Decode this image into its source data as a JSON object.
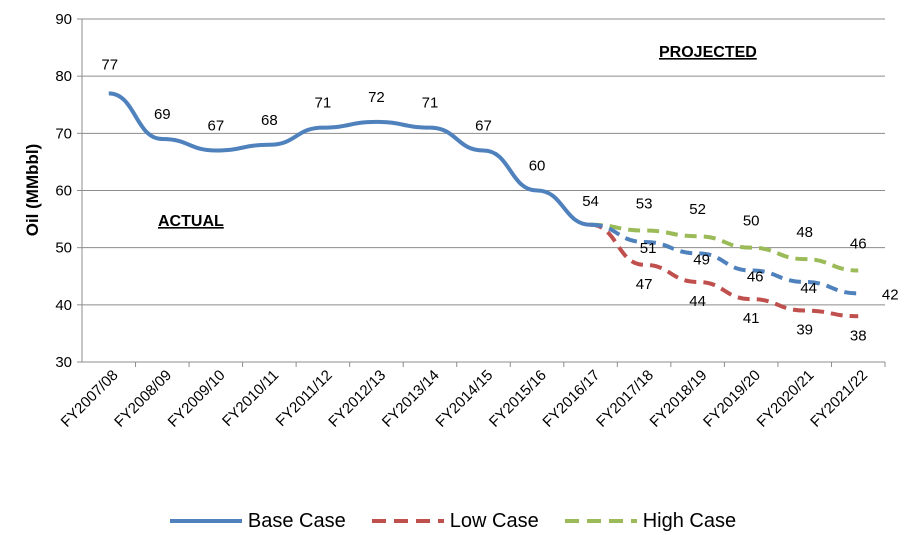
{
  "chart_data": {
    "type": "line",
    "ylabel": "Oil (MMbbl)",
    "ylim": [
      30,
      90
    ],
    "yticks": [
      30,
      40,
      50,
      60,
      70,
      80,
      90
    ],
    "grid": true,
    "legend_position": "bottom",
    "categories": [
      "FY2007/08",
      "FY2008/09",
      "FY2009/10",
      "FY2010/11",
      "FY2011/12",
      "FY2012/13",
      "FY2013/14",
      "FY2014/15",
      "FY2015/16",
      "FY2016/17",
      "FY2017/18",
      "FY2018/19",
      "FY2019/20",
      "FY2020/21",
      "FY2021/22"
    ],
    "series": [
      {
        "name": "Base Case",
        "color": "#4F81BD",
        "style": "solid-then-dashed",
        "values": [
          77,
          69,
          67,
          68,
          71,
          72,
          71,
          67,
          60,
          54,
          51,
          49,
          46,
          44,
          42
        ],
        "labels": [
          "77",
          "69",
          "67",
          "68",
          "71",
          "72",
          "71",
          "67",
          "60",
          "54",
          "51",
          "49",
          "46",
          "44",
          "42"
        ]
      },
      {
        "name": "Low Case",
        "color": "#C0504D",
        "style": "dashed",
        "values": [
          null,
          null,
          null,
          null,
          null,
          null,
          null,
          null,
          null,
          54,
          47,
          44,
          41,
          39,
          38
        ],
        "labels": [
          "",
          "",
          "",
          "",
          "",
          "",
          "",
          "",
          "",
          "",
          "47",
          "44",
          "41",
          "39",
          "38"
        ]
      },
      {
        "name": "High Case",
        "color": "#9BBB59",
        "style": "dashed",
        "values": [
          null,
          null,
          null,
          null,
          null,
          null,
          null,
          null,
          null,
          54,
          53,
          52,
          50,
          48,
          46
        ],
        "labels": [
          "",
          "",
          "",
          "",
          "",
          "",
          "",
          "",
          "",
          "54",
          "53",
          "52",
          "50",
          "48",
          "46"
        ]
      }
    ],
    "annotations": [
      {
        "text": "ACTUAL"
      },
      {
        "text": "PROJECTED"
      }
    ]
  }
}
